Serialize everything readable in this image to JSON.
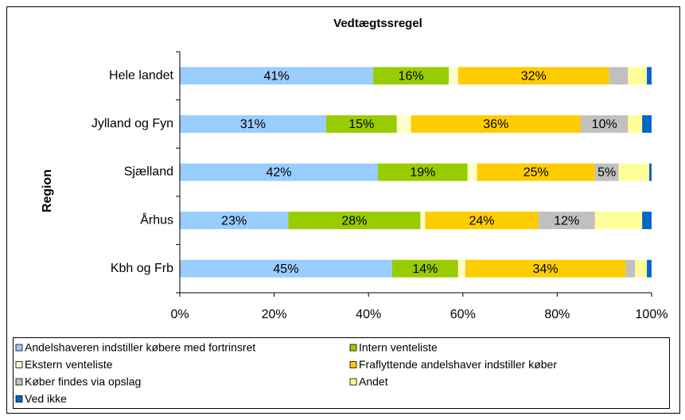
{
  "chart_data": {
    "type": "stacked-bar-horizontal",
    "title": "Vedtægtssregel",
    "y_label": "Region",
    "categories": [
      "Hele landet",
      "Jylland og Fyn",
      "Sjælland",
      "Århus",
      "Kbh og Frb"
    ],
    "series": [
      {
        "name": "Andelshaveren indstiller købere med fortrinsret",
        "color": "#99ccff",
        "values": [
          41,
          31,
          42,
          23,
          45
        ],
        "value_labels": [
          "41%",
          "31%",
          "42%",
          "23%",
          "45%"
        ]
      },
      {
        "name": "Intern venteliste",
        "color": "#99cc00",
        "values": [
          16,
          15,
          19,
          28,
          14
        ],
        "value_labels": [
          "16%",
          "15%",
          "19%",
          "28%",
          "14%"
        ]
      },
      {
        "name": "Ekstern venteliste",
        "color": "#ffffcc",
        "values": [
          2,
          3,
          2,
          1,
          1.5
        ]
      },
      {
        "name": "Fraflyttende andelshaver indstiller køber",
        "color": "#ffcc00",
        "values": [
          32,
          36,
          25,
          24,
          34
        ],
        "value_labels": [
          "32%",
          "36%",
          "25%",
          "24%",
          "34%"
        ]
      },
      {
        "name": "Køber findes via opslag",
        "color": "#c0c0c0",
        "values": [
          4,
          10,
          5,
          12,
          2
        ],
        "value_labels": [
          null,
          "10%",
          "5%",
          "12%",
          null
        ]
      },
      {
        "name": "Andet",
        "color": "#ffff99",
        "values": [
          4,
          3,
          6.5,
          10,
          2.5
        ]
      },
      {
        "name": "Ved ikke",
        "color": "#0066cc",
        "values": [
          1,
          2,
          0.5,
          2,
          1
        ]
      }
    ],
    "xlim": [
      0,
      100
    ],
    "xticks": [
      {
        "value": 0,
        "label": "0%"
      },
      {
        "value": 20,
        "label": "20%"
      },
      {
        "value": 40,
        "label": "40%"
      },
      {
        "value": 60,
        "label": "60%"
      },
      {
        "value": 80,
        "label": "80%"
      },
      {
        "value": 100,
        "label": "100%"
      }
    ]
  }
}
